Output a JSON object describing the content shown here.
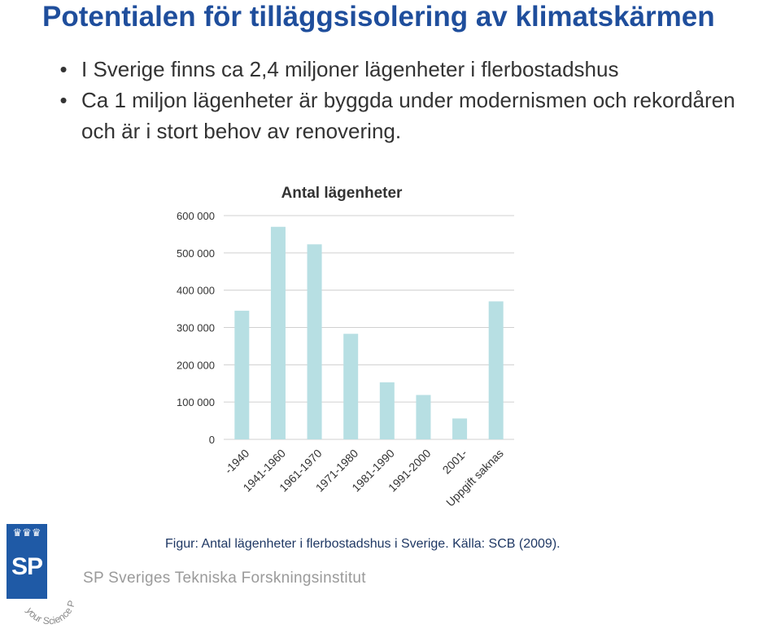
{
  "title": "Potentialen för tilläggsisolering av klimatskärmen",
  "bullets": [
    "I Sverige finns ca 2,4 miljoner lägenheter i flerbostadshus",
    "Ca 1 miljon lägenheter är byggda under modernismen och rekordåren och är i stort behov av renovering."
  ],
  "bullet_glyph": "•",
  "chart_data": {
    "type": "bar",
    "title": "Antal lägenheter",
    "categories": [
      "-1940",
      "1941-1960",
      "1961-1970",
      "1971-1980",
      "1981-1990",
      "1991-2000",
      "2001-",
      "Uppgift saknas"
    ],
    "values": [
      345000,
      570000,
      523000,
      283000,
      153000,
      119000,
      56000,
      370000
    ],
    "ylim": [
      0,
      600000
    ],
    "yticks": [
      0,
      100000,
      200000,
      300000,
      400000,
      500000,
      600000
    ],
    "ytick_labels": [
      "0",
      "100 000",
      "200 000",
      "300 000",
      "400 000",
      "500 000",
      "600 000"
    ],
    "grid": true,
    "legend": "none",
    "bar_color": "#b7dfe3",
    "grid_color": "#d0d0d0"
  },
  "caption": "Figur: Antal lägenheter i flerbostadshus i Sverige. Källa: SCB (2009).",
  "footer": {
    "logo_text": "SP",
    "logo_crowns": "♛♛♛",
    "org_name": "SP Sveriges Tekniska Forskningsinstitut",
    "seal_text": "your Science Partner"
  },
  "colors": {
    "title": "#1f4e9c",
    "logo": "#1f5aa6"
  }
}
